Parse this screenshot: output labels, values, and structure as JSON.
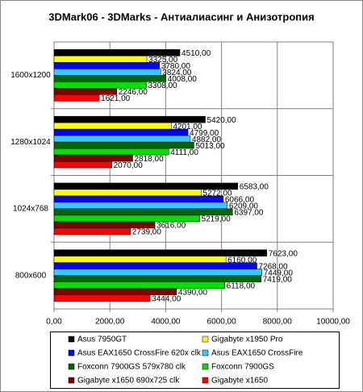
{
  "chart_data": {
    "type": "bar",
    "orientation": "horizontal",
    "title": "3DMark06 - 3DMarks - Антиалиасинг и Анизотропия",
    "categories": [
      "1600x1200",
      "1280x1024",
      "1024x768",
      "800x600"
    ],
    "series": [
      {
        "name": "Asus 7950GT",
        "color": "#000000",
        "values": [
          4510,
          5420,
          6583,
          7623
        ],
        "value_labels": [
          "4510,00",
          "5420,00",
          "6583,00",
          "7623,00"
        ]
      },
      {
        "name": "Gigabyte x1950 Pro",
        "color": "#ffff00",
        "values": [
          3325,
          4201,
          5272,
          6160
        ],
        "value_labels": [
          "3325,00",
          "4201,00",
          "5272,00",
          "6160,00"
        ]
      },
      {
        "name": "Asus EAX1650 CrossFire 620x clk",
        "color": "#0000ff",
        "values": [
          3780,
          4799,
          6066,
          7268
        ],
        "value_labels": [
          "3780,00",
          "4799,00",
          "6066,00",
          "7268,00"
        ]
      },
      {
        "name": "Asus EAX1650 CrossFire",
        "color": "#33ccff",
        "values": [
          3824,
          4882,
          6209,
          7449
        ],
        "value_labels": [
          "3824,00",
          "4882,00",
          "6209,00",
          "7449,00"
        ]
      },
      {
        "name": "Foxconn 7900GS 579x780 clk",
        "color": "#006600",
        "values": [
          4008,
          5013,
          6397,
          7419
        ],
        "value_labels": [
          "4008,00",
          "5013,00",
          "6397,00",
          "7419,00"
        ]
      },
      {
        "name": "Foxconn 7900GS",
        "color": "#00e000",
        "values": [
          3308,
          4111,
          5219,
          6118
        ],
        "value_labels": [
          "3308,00",
          "4111,00",
          "5219,00",
          "6118,00"
        ]
      },
      {
        "name": "Gigabyte x1650 690x725 clk",
        "color": "#800000",
        "values": [
          2246,
          2818,
          3616,
          4390
        ],
        "value_labels": [
          "2246,00",
          "2818,00",
          "3616,00",
          "4390,00"
        ]
      },
      {
        "name": "Gigabyte x1650",
        "color": "#ff0000",
        "values": [
          1621,
          2070,
          2739,
          3444
        ],
        "value_labels": [
          "1621,00",
          "2070,00",
          "2739,00",
          "3444,00"
        ]
      }
    ],
    "xlim": [
      0,
      10000
    ],
    "xticks": [
      {
        "value": 0,
        "label": "0,00"
      },
      {
        "value": 2000,
        "label": "2000,00"
      },
      {
        "value": 4000,
        "label": "4000,00"
      },
      {
        "value": 6000,
        "label": "6000,00"
      },
      {
        "value": 8000,
        "label": "8000,00"
      },
      {
        "value": 10000,
        "label": "10000,00"
      }
    ],
    "grid": true
  }
}
